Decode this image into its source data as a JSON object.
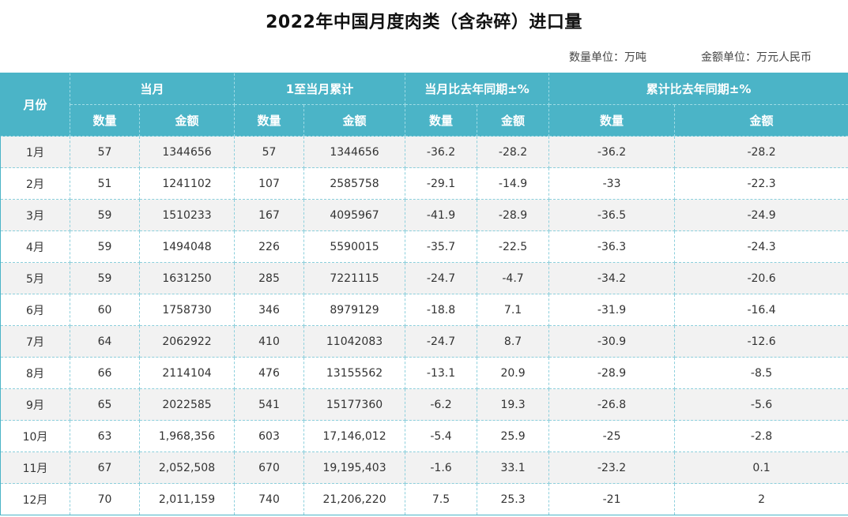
{
  "title": "2022年中国月度肉类（含杂碎）进口量",
  "units": {
    "quantity": "数量单位：万吨",
    "amount": "金额单位：万元人民币"
  },
  "header": {
    "month": "月份",
    "groups": [
      "当月",
      "1至当月累计",
      "当月比去年同期±%",
      "累计比去年同期±%"
    ],
    "sub": [
      "数量",
      "金额",
      "数量",
      "金额",
      "数量",
      "金额",
      "数量",
      "金额"
    ]
  },
  "rows": [
    [
      "1月",
      "57",
      "1344656",
      "57",
      "1344656",
      "-36.2",
      "-28.2",
      "-36.2",
      "-28.2"
    ],
    [
      "2月",
      "51",
      "1241102",
      "107",
      "2585758",
      "-29.1",
      "-14.9",
      "-33",
      "-22.3"
    ],
    [
      "3月",
      "59",
      "1510233",
      "167",
      "4095967",
      "-41.9",
      "-28.9",
      "-36.5",
      "-24.9"
    ],
    [
      "4月",
      "59",
      "1494048",
      "226",
      "5590015",
      "-35.7",
      "-22.5",
      "-36.3",
      "-24.3"
    ],
    [
      "5月",
      "59",
      "1631250",
      "285",
      "7221115",
      "-24.7",
      "-4.7",
      "-34.2",
      "-20.6"
    ],
    [
      "6月",
      "60",
      "1758730",
      "346",
      "8979129",
      "-18.8",
      "7.1",
      "-31.9",
      "-16.4"
    ],
    [
      "7月",
      "64",
      "2062922",
      "410",
      "11042083",
      "-24.7",
      "8.7",
      "-30.9",
      "-12.6"
    ],
    [
      "8月",
      "66",
      "2114104",
      "476",
      "13155562",
      "-13.1",
      "20.9",
      "-28.9",
      "-8.5"
    ],
    [
      "9月",
      "65",
      "2022585",
      "541",
      "15177360",
      "-6.2",
      "19.3",
      "-26.8",
      "-5.6"
    ],
    [
      "10月",
      "63",
      "1,968,356",
      "603",
      "17,146,012",
      "-5.4",
      "25.9",
      "-25",
      "-2.8"
    ],
    [
      "11月",
      "67",
      "2,052,508",
      "670",
      "19,195,403",
      "-1.6",
      "33.1",
      "-23.2",
      "0.1"
    ],
    [
      "12月",
      "70",
      "2,011,159",
      "740",
      "21,206,220",
      "7.5",
      "25.3",
      "-21",
      "2"
    ]
  ]
}
